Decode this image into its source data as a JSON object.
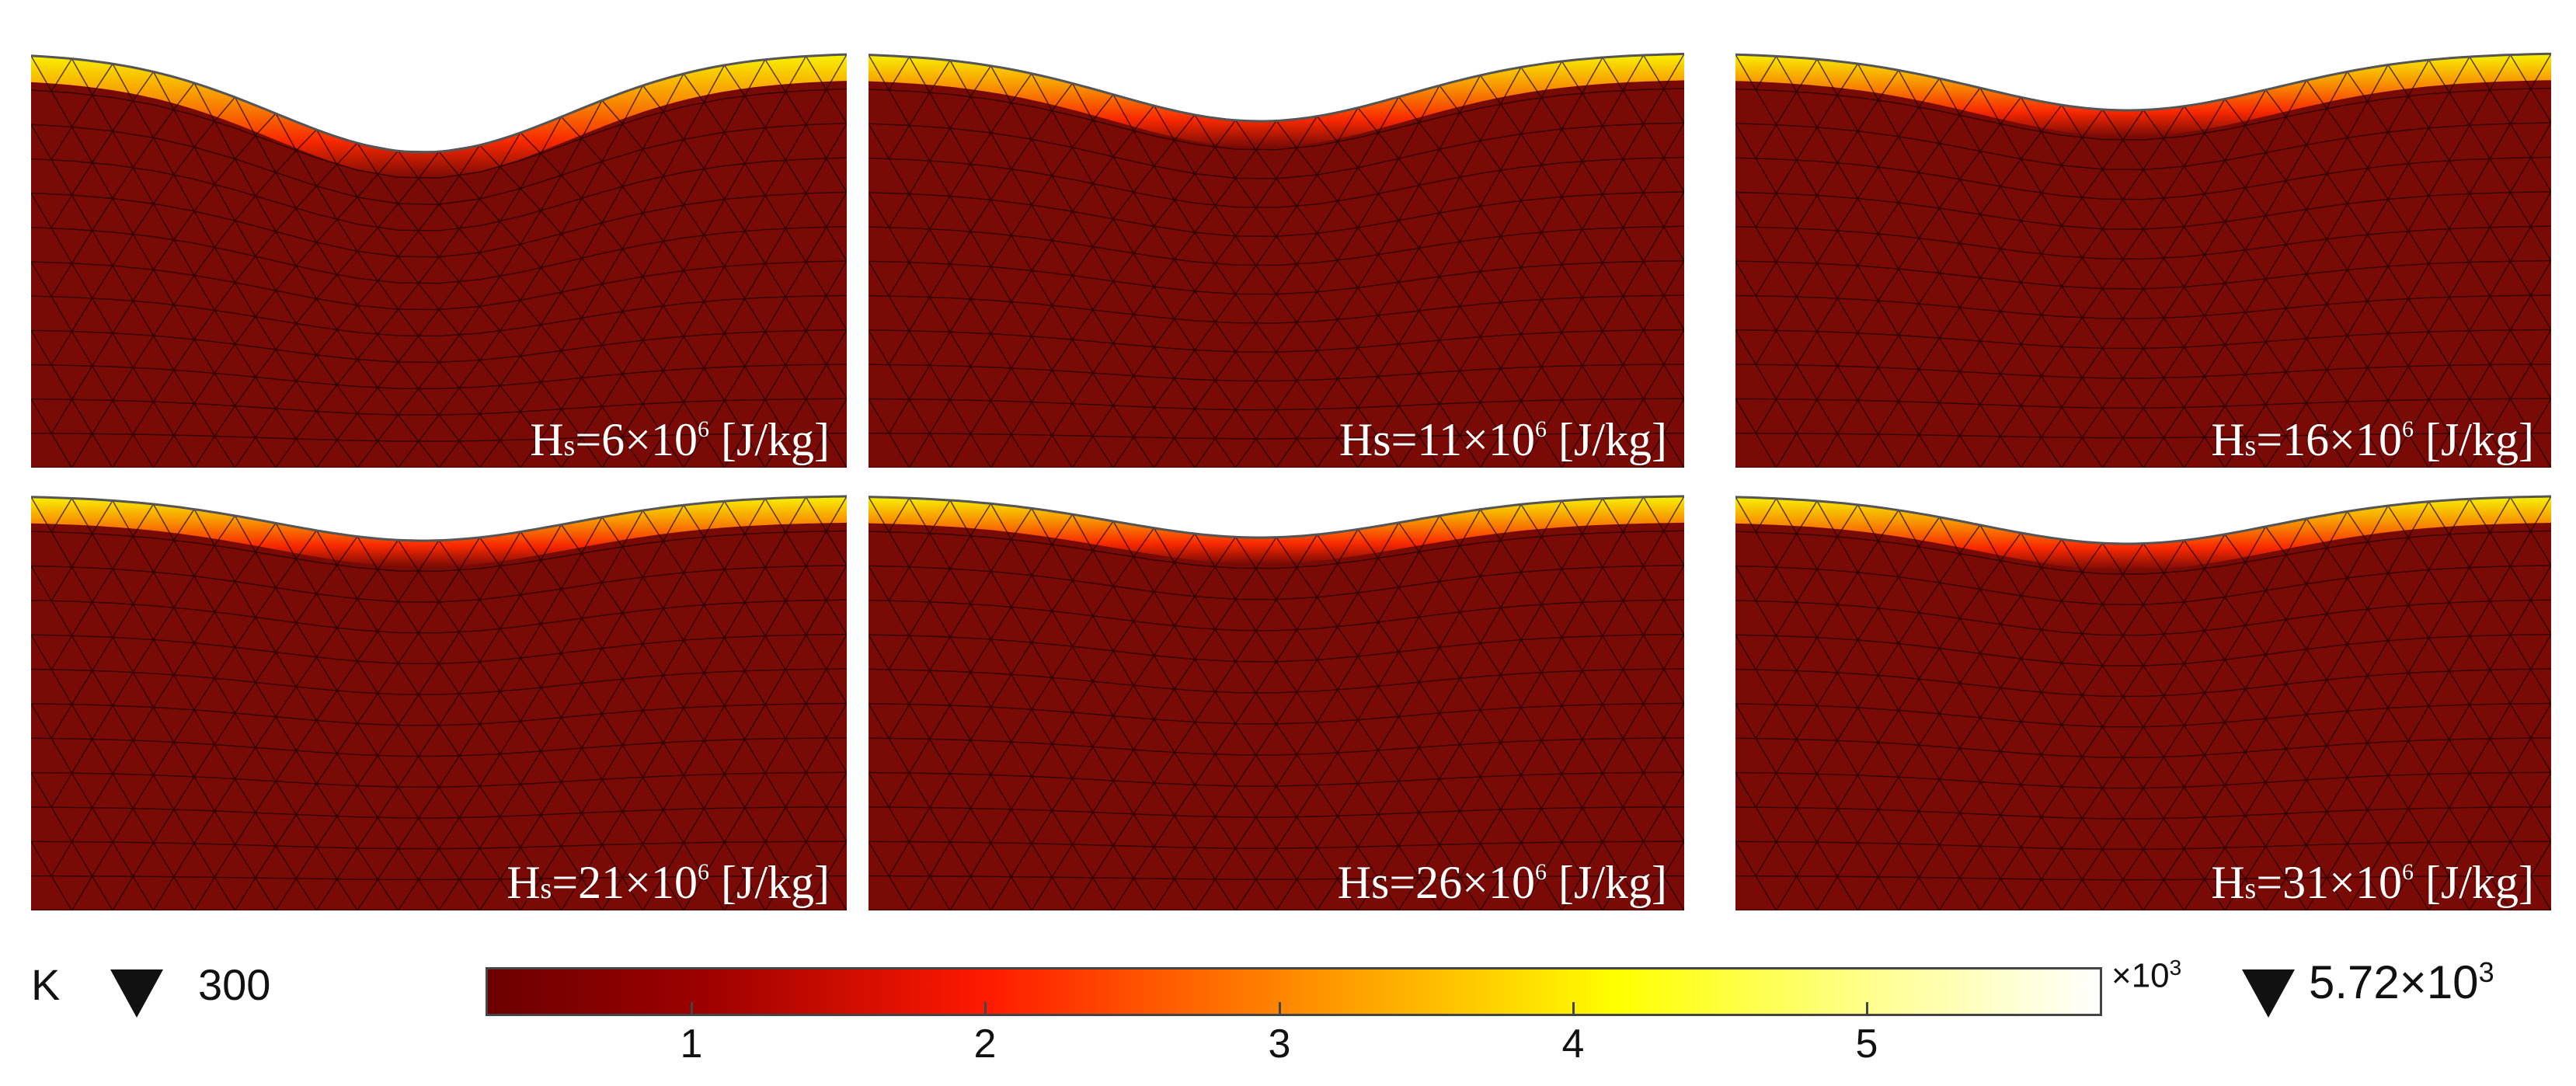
{
  "panels": [
    {
      "label_prefix": "H",
      "label_sub": "s",
      "label_value": "=6×10",
      "label_exp": "6",
      "label_unit": " [J/kg]"
    },
    {
      "label_prefix": "Hs",
      "label_sub": "",
      "label_value": "=11×10",
      "label_exp": "6",
      "label_unit": " [J/kg]"
    },
    {
      "label_prefix": "H",
      "label_sub": "s",
      "label_value": "=16×10",
      "label_exp": "6",
      "label_unit": " [J/kg]"
    },
    {
      "label_prefix": "H",
      "label_sub": "s",
      "label_value": "=21×10",
      "label_exp": "6",
      "label_unit": " [J/kg]"
    },
    {
      "label_prefix": "Hs",
      "label_sub": "",
      "label_value": "=26×10",
      "label_exp": "6",
      "label_unit": " [J/kg]"
    },
    {
      "label_prefix": "H",
      "label_sub": "s",
      "label_value": "=31×10",
      "label_exp": "6",
      "label_unit": " [J/kg]"
    }
  ],
  "colorbar": {
    "unit": "K",
    "min_label": "300",
    "max_label": "5.72×10",
    "max_exp": "3",
    "scale_label": "×10",
    "scale_exp": "3",
    "ticks": [
      "1",
      "2",
      "3",
      "4",
      "5"
    ],
    "colormap": "heat",
    "colors": [
      "#6b0000",
      "#a00000",
      "#ff1a00",
      "#ff8a00",
      "#ffff00",
      "#ffffff"
    ]
  },
  "colors": {
    "domain": "#7a0a05",
    "mesh": "#1a0000",
    "boundary": "#555555"
  }
}
